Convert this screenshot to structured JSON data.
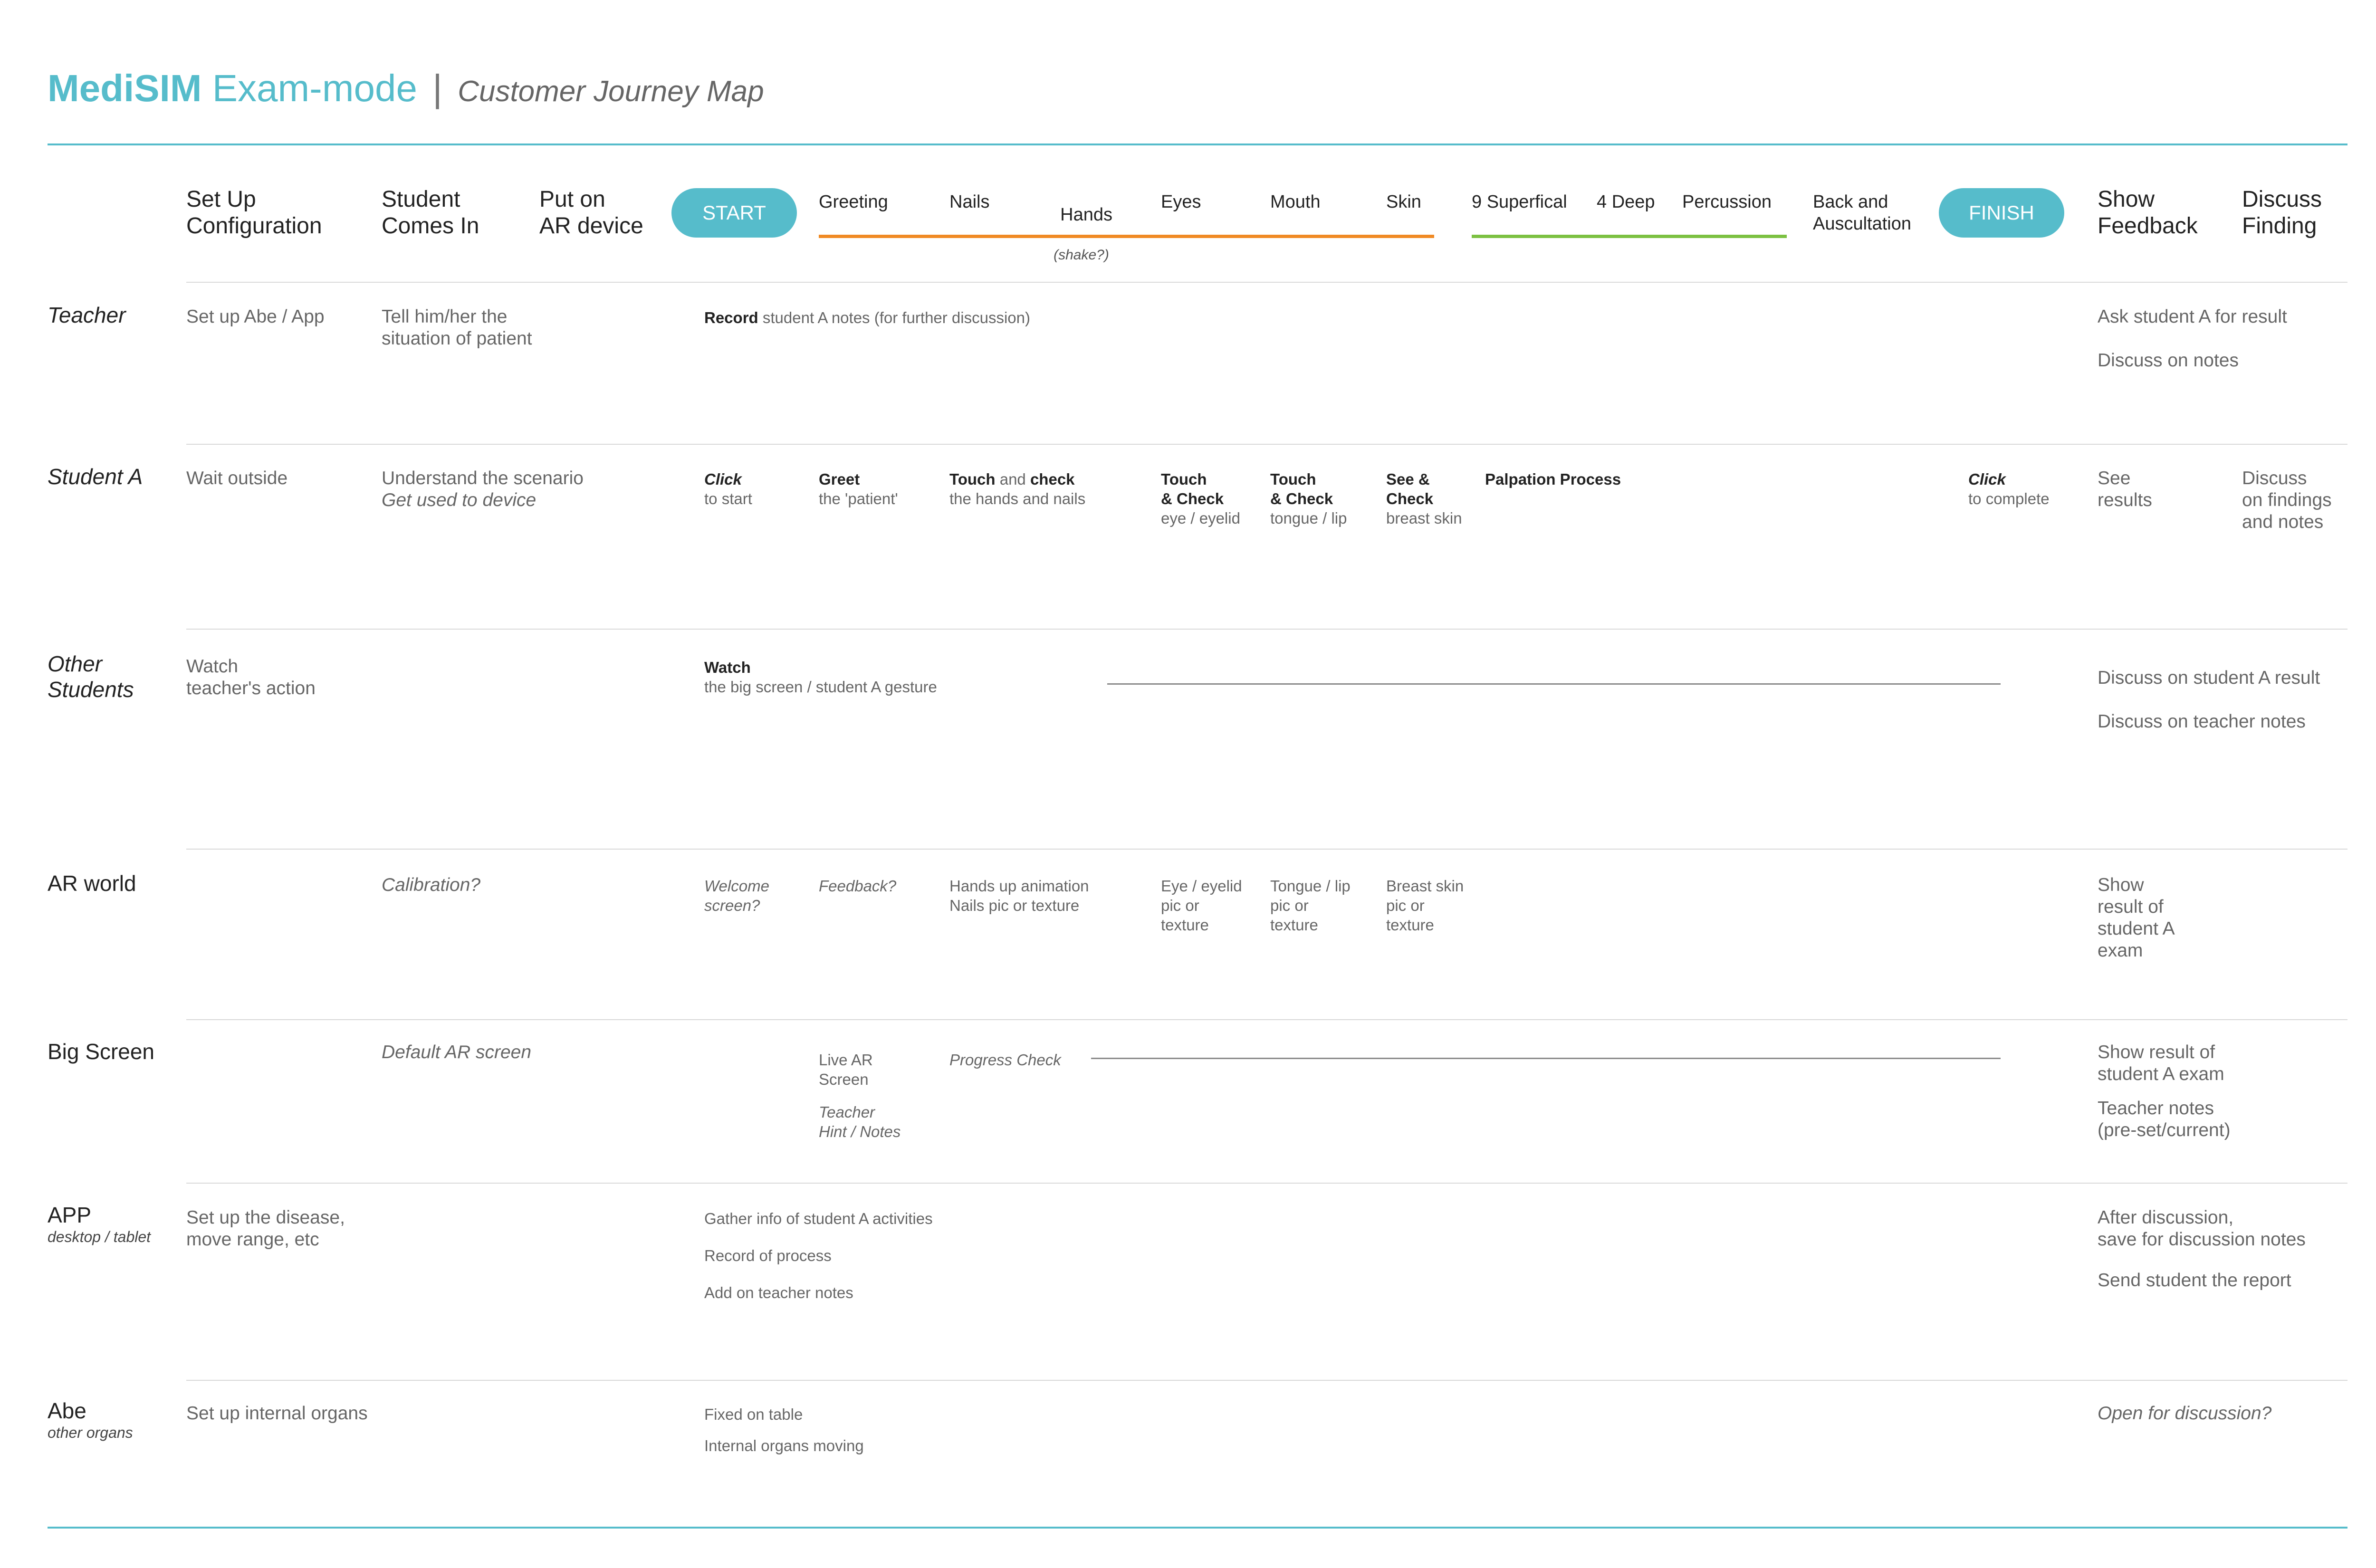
{
  "header": {
    "brand": "MediSIM",
    "mode": "Exam-mode",
    "separator": "|",
    "subtitle": "Customer Journey Map"
  },
  "colors": {
    "accent": "#56bccb",
    "orange": "#f08a24",
    "green": "#7cc142"
  },
  "stages": {
    "setup": "Set Up\nConfiguration",
    "student_comes": "Student\nComes In",
    "put_on": "Put on\nAR device",
    "start": "START",
    "greeting": "Greeting",
    "nails": "Nails",
    "hands": "Hands",
    "hands_hint": "(shake?)",
    "eyes": "Eyes",
    "mouth": "Mouth",
    "skin": "Skin",
    "superficial": "9 Superfical",
    "deep": "4 Deep",
    "percussion": "Percussion",
    "back": "Back and\nAuscultation",
    "finish": "FINISH",
    "show_feedback": "Show\nFeedback",
    "discuss_finding": "Discuss\nFinding"
  },
  "lanes": {
    "teacher": {
      "label": "Teacher",
      "setup": "Set up Abe / App",
      "tell": "Tell him/her the\nsituation of patient",
      "record_bold": "Record",
      "record_rest": " student A notes (for further discussion)",
      "ask": "Ask student A for result",
      "discuss": "Discuss on notes"
    },
    "student_a": {
      "label": "Student A",
      "wait": "Wait outside",
      "understand": "Understand the scenario",
      "used": "Get used to device",
      "click_start_bold": "Click",
      "click_start_rest": "to start",
      "greet_bold": "Greet",
      "greet_rest": "the 'patient'",
      "touch1_bold": "Touch",
      "touch1_mid": " and ",
      "touch1_bold2": "check",
      "touch1_rest": "the hands and nails",
      "eye_bold": "Touch\n& Check",
      "eye_rest": "eye / eyelid",
      "tongue_bold": "Touch\n& Check",
      "tongue_rest": "tongue / lip",
      "see_bold": "See &\nCheck",
      "see_rest": "breast skin",
      "palpation": "Palpation Process",
      "click_complete_bold": "Click",
      "click_complete_rest": "to complete",
      "see_results": "See\nresults",
      "discuss": "Discuss\non findings\nand notes"
    },
    "other_students": {
      "label": "Other\nStudents",
      "watch": "Watch\nteacher's action",
      "watch2_bold": "Watch",
      "watch2_rest": "the big screen / student A gesture",
      "discuss_result": "Discuss on student A result",
      "discuss_notes": "Discuss on teacher notes"
    },
    "ar_world": {
      "label": "AR world",
      "calibration": "Calibration?",
      "welcome": "Welcome\nscreen?",
      "feedback": "Feedback?",
      "hands_anim": "Hands up animation\nNails pic or texture",
      "eye": "Eye / eyelid\npic or\ntexture",
      "tongue": "Tongue / lip\npic or\ntexture",
      "breast": "Breast skin\npic or\ntexture",
      "show": "Show\nresult of\nstudent A\nexam"
    },
    "big_screen": {
      "label": "Big Screen",
      "default": "Default AR screen",
      "live": "Live AR\nScreen",
      "hint": "Teacher\nHint / Notes",
      "progress": "Progress Check",
      "show": "Show result of\nstudent A exam",
      "notes": "Teacher notes\n(pre-set/current)"
    },
    "app": {
      "label": "APP",
      "sub": "desktop / tablet",
      "setup": "Set up the disease,\nmove range, etc",
      "gather": "Gather info of student A activities",
      "record": "Record of process",
      "add": "Add on teacher notes",
      "after": "After discussion,\nsave for discussion notes",
      "send": "Send student the report"
    },
    "abe": {
      "label": "Abe",
      "sub": "other organs",
      "setup": "Set up internal organs",
      "fixed": "Fixed on table",
      "moving": "Internal organs moving",
      "open": "Open for discussion?"
    }
  }
}
